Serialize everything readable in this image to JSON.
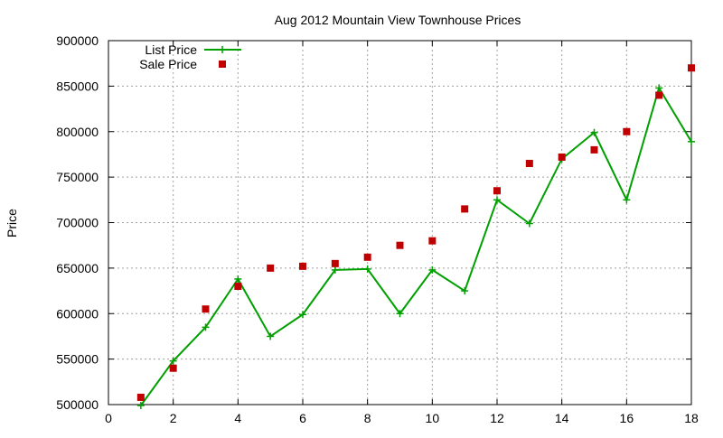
{
  "chart_data": {
    "type": "line",
    "title": "Aug 2012 Mountain View Townhouse Prices",
    "xlabel": "",
    "ylabel": "Price",
    "xlim": [
      0,
      18
    ],
    "ylim": [
      500000,
      900000
    ],
    "xticks": [
      0,
      2,
      4,
      6,
      8,
      10,
      12,
      14,
      16,
      18
    ],
    "yticks": [
      500000,
      550000,
      600000,
      650000,
      700000,
      750000,
      800000,
      850000,
      900000
    ],
    "grid": true,
    "legend_position": "top-left",
    "series": [
      {
        "name": "List Price",
        "style": "line-with-plus-markers",
        "color": "#00a000",
        "x": [
          1,
          2,
          3,
          4,
          5,
          6,
          7,
          8,
          9,
          10,
          11,
          12,
          13,
          14,
          15,
          16,
          17,
          18
        ],
        "values": [
          499000,
          548000,
          585000,
          638000,
          575000,
          599000,
          648000,
          649000,
          600000,
          648000,
          625000,
          725000,
          699000,
          770000,
          799000,
          725000,
          848000,
          789000
        ]
      },
      {
        "name": "Sale Price",
        "style": "square-markers",
        "color": "#c00000",
        "x": [
          1,
          2,
          3,
          4,
          5,
          6,
          7,
          8,
          9,
          10,
          11,
          12,
          13,
          14,
          15,
          16,
          17,
          18
        ],
        "values": [
          508000,
          540000,
          605000,
          630000,
          650000,
          652000,
          655000,
          662000,
          675000,
          680000,
          715000,
          735000,
          765000,
          772000,
          780000,
          800000,
          840000,
          870000
        ]
      }
    ]
  }
}
